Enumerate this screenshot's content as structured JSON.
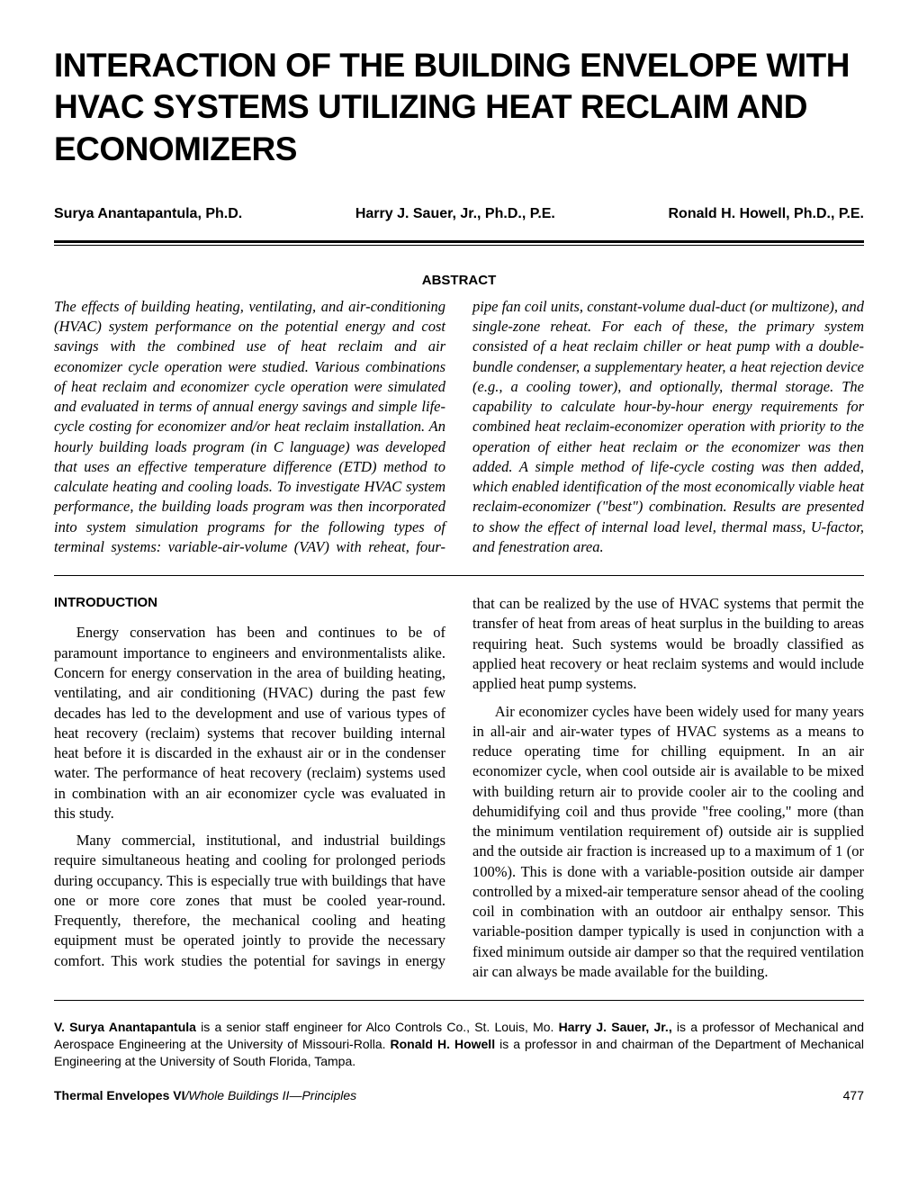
{
  "title": "INTERACTION OF THE BUILDING ENVELOPE WITH HVAC SYSTEMS UTILIZING HEAT RECLAIM AND ECONOMIZERS",
  "authors": {
    "a1": "Surya Anantapantula, Ph.D.",
    "a2": "Harry J. Sauer, Jr., Ph.D., P.E.",
    "a3": "Ronald H. Howell, Ph.D., P.E."
  },
  "abstract_heading": "ABSTRACT",
  "abstract_text": "The effects of building heating, ventilating, and air-conditioning (HVAC) system performance on the potential energy and cost savings with the combined use of heat reclaim and air economizer cycle operation were studied. Various combinations of heat reclaim and economizer cycle operation were simulated and evaluated in terms of annual energy savings and simple life-cycle costing for economizer and/or heat reclaim installation. An hourly building loads program (in C language) was developed that uses an effective temperature difference (ETD) method to calculate heating and cooling loads. To investigate HVAC system performance, the building loads program was then incorporated into system simulation programs for the following types of terminal systems: variable-air-volume (VAV) with reheat, four-pipe fan coil units, constant-volume dual-duct (or multizone), and single-zone reheat. For each of these, the primary system consisted of a heat reclaim chiller or heat pump with a double-bundle condenser, a supplementary heater, a heat rejection device (e.g., a cooling tower), and optionally, thermal storage. The capability to calculate hour-by-hour energy requirements for combined heat reclaim-economizer operation with priority to the operation of either heat reclaim or the economizer was then added. A simple method of life-cycle costing was then added, which enabled identification of the most economically viable heat reclaim-economizer (\"best\") combination. Results are presented to show the effect of internal load level, thermal mass, U-factor, and fenestration area.",
  "intro_heading": "INTRODUCTION",
  "intro_p1": "Energy conservation has been and continues to be of paramount importance to engineers and environmentalists alike. Concern for energy conservation in the area of building heating, ventilating, and air conditioning (HVAC) during the past few decades has led to the development and use of various types of heat recovery (reclaim) systems that recover building internal heat before it is discarded in the exhaust air or in the condenser water. The performance of heat recovery (reclaim) systems used in combination with an air economizer cycle was evaluated in this study.",
  "intro_p2": "Many commercial, institutional, and industrial buildings require simultaneous heating and cooling for prolonged periods during occupancy. This is especially true with buildings that have one or more core zones that must be cooled year-round. Frequently, therefore, the mechanical cooling and heating equipment must be operated jointly to provide the necessary comfort. This work studies the potential for savings in energy that can be realized by the use of HVAC systems that permit the transfer of heat from areas of heat surplus in the building to areas requiring heat. Such systems would be broadly classified as applied heat recovery or heat reclaim systems and would include applied heat pump systems.",
  "intro_p3": "Air economizer cycles have been widely used for many years in all-air and air-water types of HVAC systems as a means to reduce operating time for chilling equipment. In an air economizer cycle, when cool outside air is available to be mixed with building return air to provide cooler air to the cooling and dehumidifying coil and thus provide \"free cooling,\" more (than the minimum ventilation requirement of) outside air is supplied and the outside air fraction is increased up to a maximum of 1 (or 100%). This is done with a variable-position outside air damper controlled by a mixed-air temperature sensor ahead of the cooling coil in combination with an outdoor air enthalpy sensor. This variable-position damper typically is used in conjunction with a fixed minimum outside air damper so that the required ventilation air can always be made available for the building.",
  "bio": {
    "name1": "V. Surya Anantapantula",
    "text1": " is a senior staff engineer for Alco Controls Co., St. Louis, Mo. ",
    "name2": "Harry J. Sauer, Jr.,",
    "text2": " is a professor of Mechanical and Aerospace Engineering at the University of Missouri-Rolla. ",
    "name3": "Ronald H. Howell",
    "text3": " is a professor in and chairman of the Department of Mechanical Engineering at the University of South Florida, Tampa."
  },
  "footer": {
    "journal": "Thermal Envelopes VI",
    "section": "/Whole Buildings II—Principles",
    "page": "477"
  }
}
